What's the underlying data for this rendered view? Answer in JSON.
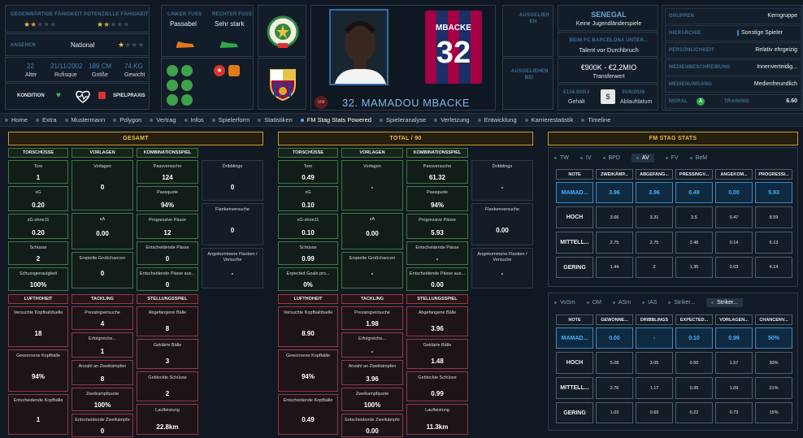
{
  "profile": {
    "current_ability_label": "GEGENWÄRTIGE FÄHIGKEIT",
    "potential_ability_label": "POTENZIELLE FÄHIGKEIT",
    "reputation_label": "ANSEHEN",
    "reputation_value": "National",
    "age": "22",
    "age_label": "Alter",
    "dob": "21/11/2002",
    "dob_label": "Rufisque",
    "height": "189 CM",
    "height_label": "Größe",
    "weight": "74 KG",
    "weight_label": "Gewicht",
    "condition_label": "KONDITION",
    "match_practice_label": "SPIELPRAXIS",
    "left_foot_label": "LINKER FUSS",
    "left_foot_value": "Passabel",
    "right_foot_label": "RECHTER FUSS",
    "right_foot_value": "Sehr stark",
    "loaned_label": "AUSGELIEH EN",
    "loaned_in_label": "AUSGELIEHEN BEI",
    "nation": "SENEGAL",
    "youth_caps": "Keine Jugendländerspiele",
    "club_label": "BEIM FC BARCELONA UNTER...",
    "club_value": "Talent vor Durchbruch",
    "value": "€900K - €2,2MIO",
    "value_label": "Transferwert",
    "wage": "€134.000/J",
    "wage_label": "Gehalt",
    "expiry": "30/6/2026",
    "expiry_label": "Ablaufdatum",
    "player_name": "32. MAMADOU MBACKE",
    "shirt_name": "MBACKE",
    "shirt_number": "32",
    "uni_badge": "UNI"
  },
  "side": {
    "rows": [
      {
        "label": "GRUPPEN",
        "value": "Kerngruppe"
      },
      {
        "label": "HIERARCHIE",
        "value": "Sonstige Spieler"
      },
      {
        "label": "PERSÖNLICHKEIT",
        "value": "Relativ ehrgeizig"
      },
      {
        "label": "MEDIENBESCHREIBUNG",
        "value": "Innenverteidig..."
      },
      {
        "label": "MEDIENUMGANG",
        "value": "Medienfreundlich"
      }
    ],
    "morale_label": "MORAL",
    "morale_badge": "A",
    "training_label": "TRAINING",
    "training_value": "6.60"
  },
  "nav": [
    "Home",
    "Extra",
    "Mustermann",
    "Polygon",
    "Vertrag",
    "Infos",
    "Spielerform",
    "Statistiken",
    "FM Stag Stats Powered",
    "Spieleranalyse",
    "Verletzung",
    "Entwicklung",
    "Karrierestatistik",
    "Timeline"
  ],
  "panels": [
    {
      "title": "GESAMT",
      "heads": [
        "TORSCHÜSSE",
        "VORLAGEN",
        "KOMBINATIONSSPIEL"
      ],
      "t": [
        [
          "Tore",
          "1"
        ],
        [
          "xG",
          "0.20"
        ],
        [
          "xG-ohne11",
          "0.20"
        ],
        [
          "Schüsse",
          "2"
        ],
        [
          "Schussgenauigkeit",
          "100%"
        ]
      ],
      "v": [
        [
          "Vorlagen",
          "0"
        ],
        [
          "xA",
          "0.00"
        ],
        [
          "Erspielte Großchancen",
          "0"
        ]
      ],
      "k1": [
        [
          "Passversuche",
          "124"
        ],
        [
          "Passquote",
          "94%"
        ],
        [
          "Progressive Pässe",
          "12"
        ],
        [
          "Entscheidende Pässe",
          "0"
        ],
        [
          "Entscheidende Pässe aus...",
          "0"
        ]
      ],
      "k2": [
        [
          "Dribblings",
          "0"
        ],
        [
          "Flankenversuche",
          "0"
        ],
        [
          "Angekommene Flanken / Versuche",
          "-"
        ]
      ],
      "heads2": [
        "LUFTHOHEIT",
        "TACKLING",
        "STELLUNGSSPIEL"
      ],
      "l": [
        [
          "Versuchte Kopfballduelle",
          "18"
        ],
        [
          "Gewonnene Kopfbälle",
          "94%"
        ],
        [
          "Entscheidende Kopfbälle",
          "1"
        ]
      ],
      "tk": [
        [
          "Pressingversuche",
          "4"
        ],
        [
          "Erfolgreiche...",
          "1"
        ],
        [
          "Anzahl an Zweikämpfen",
          "8"
        ],
        [
          "Zweikampfquote",
          "100%"
        ],
        [
          "Entscheidende Zweikämpfe",
          "0"
        ]
      ],
      "s": [
        [
          "Abgefangene Bälle",
          "8"
        ],
        [
          "Geklärte Bälle",
          "3"
        ],
        [
          "Geblockte Schüsse",
          "2"
        ],
        [
          "Laufleistung",
          "22.8km"
        ]
      ]
    },
    {
      "title": "TOTAL / 90",
      "heads": [
        "TORSCHÜSSE",
        "VORLAGEN",
        "KOMBINATIONSSPIEL"
      ],
      "t": [
        [
          "Tore",
          "0.49"
        ],
        [
          "xG",
          "0.10"
        ],
        [
          "xG-ohne11",
          "0.10"
        ],
        [
          "Schüsse",
          "0.99"
        ],
        [
          "Expected Goals pro...",
          "0%"
        ]
      ],
      "v": [
        [
          "Vorlagen",
          "-"
        ],
        [
          "xA",
          "0.00"
        ],
        [
          "Erspielte Großchancen",
          "-"
        ]
      ],
      "k1": [
        [
          "Passversuche",
          "61.32"
        ],
        [
          "Passquote",
          "94%"
        ],
        [
          "Progressive Pässe",
          "5.93"
        ],
        [
          "Entscheidende Pässe",
          "-"
        ],
        [
          "Entscheidende Pässe aus...",
          "0.00"
        ]
      ],
      "k2": [
        [
          "Dribblings",
          "-"
        ],
        [
          "Flankenversuche",
          "0.00"
        ],
        [
          "Angekommene Flanken / Versuche",
          "-"
        ]
      ],
      "heads2": [
        "LUFTHOHEIT",
        "TACKLING",
        "STELLUNGSSPIEL"
      ],
      "l": [
        [
          "Versuchte Kopfballduelle",
          "8.90"
        ],
        [
          "Gewonnene Kopfbälle",
          "94%"
        ],
        [
          "Entscheidende Kopfbälle",
          "0.49"
        ]
      ],
      "tk": [
        [
          "Pressingversuche",
          "1.98"
        ],
        [
          "Erfolgreiche...",
          "-"
        ],
        [
          "Anzahl an Zweikämpfen",
          "3.96"
        ],
        [
          "Zweikampfquote",
          "100%"
        ],
        [
          "Entscheidende Zweikämpfe",
          "0.00"
        ]
      ],
      "s": [
        [
          "Abgefangene Bälle",
          "3.96"
        ],
        [
          "Geklärte Bälle",
          "1.48"
        ],
        [
          "Geblockte Schüsse",
          "0.99"
        ],
        [
          "Laufleistung",
          "11.3km"
        ]
      ]
    }
  ],
  "stag": {
    "title": "FM STAG STATS",
    "tabs1": [
      "TW",
      "IV",
      "BPD",
      "AV",
      "FV",
      "BeM"
    ],
    "active1": "AV",
    "t1_head": [
      "NOTE",
      "ZWEIKÄMP...",
      "ABGEFANG...",
      "PRESSINGV...",
      "ANGEKOM...",
      "PROGRESSI..."
    ],
    "t1_rows": [
      [
        "MAMAD...",
        "3.96",
        "3.96",
        "0.49",
        "0.00",
        "5.93"
      ],
      [
        "HOCH",
        "3.66",
        "3.31",
        "3.5",
        "0.47",
        "8.59"
      ],
      [
        "MITTELL...",
        "2.75",
        "2.75",
        "2.48",
        "0.14",
        "6.13"
      ],
      [
        "GERING",
        "1.44",
        "2",
        "1.35",
        "0.03",
        "4.14"
      ]
    ],
    "tabs2": [
      "VoSm",
      "OM",
      "ASm",
      "IAS",
      "Striker...",
      "Striker..."
    ],
    "active2": "Striker...",
    "t2_head": [
      "NOTE",
      "GEWONNE...",
      "DRIBBLINGS",
      "EXPECTED...",
      "VORLAGEN...",
      "CHANCENV..."
    ],
    "t2_rows": [
      [
        "MAMAD...",
        "0.00",
        "-",
        "0.10",
        "0.99",
        "50%"
      ],
      [
        "HOCH",
        "5.08",
        "3.05",
        "0.50",
        "1.57",
        "30%"
      ],
      [
        "MITTELL...",
        "2.76",
        "1.17",
        "0.35",
        "1.09",
        "21%"
      ],
      [
        "GERING",
        "1.03",
        "0.69",
        "0.22",
        "0.73",
        "15%"
      ]
    ]
  },
  "colors": {
    "gold": "#e7c04a",
    "green": "#3d7a3a",
    "red": "#a0333a",
    "blue": "#4ab0ff"
  }
}
